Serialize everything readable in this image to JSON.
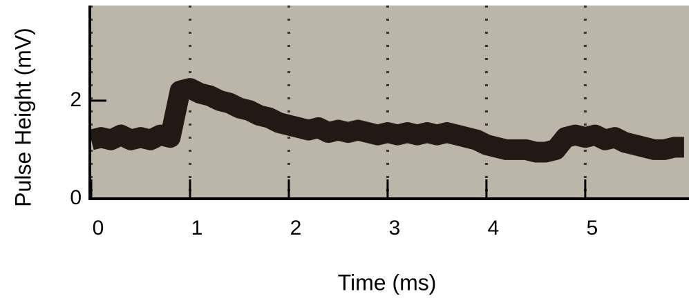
{
  "chart_data": {
    "type": "line",
    "x_label": "Time (ms)",
    "y_label": "Pulse Height (mV)",
    "x": [
      0,
      0.1,
      0.2,
      0.3,
      0.4,
      0.5,
      0.6,
      0.7,
      0.8,
      0.9,
      1.0,
      1.1,
      1.2,
      1.3,
      1.4,
      1.5,
      1.6,
      1.7,
      1.8,
      1.9,
      2.0,
      2.1,
      2.2,
      2.3,
      2.4,
      2.5,
      2.6,
      2.7,
      2.8,
      2.9,
      3.0,
      3.1,
      3.2,
      3.3,
      3.4,
      3.5,
      3.6,
      3.7,
      3.8,
      3.9,
      4.0,
      4.1,
      4.2,
      4.3,
      4.4,
      4.5,
      4.6,
      4.7,
      4.8,
      4.9,
      5.0,
      5.1,
      5.2,
      5.3,
      5.4,
      5.5,
      5.6,
      5.7,
      5.8,
      5.9,
      6.0
    ],
    "values": [
      1.2,
      1.25,
      1.2,
      1.3,
      1.2,
      1.25,
      1.2,
      1.3,
      1.25,
      2.2,
      2.25,
      2.15,
      2.1,
      2.0,
      1.95,
      1.85,
      1.8,
      1.7,
      1.65,
      1.55,
      1.5,
      1.45,
      1.4,
      1.45,
      1.35,
      1.4,
      1.35,
      1.4,
      1.35,
      1.3,
      1.35,
      1.3,
      1.35,
      1.3,
      1.35,
      1.3,
      1.35,
      1.3,
      1.25,
      1.2,
      1.1,
      1.05,
      1.0,
      1.0,
      1.0,
      0.95,
      0.95,
      1.0,
      1.25,
      1.3,
      1.25,
      1.3,
      1.2,
      1.25,
      1.15,
      1.1,
      1.05,
      1.0,
      1.0,
      1.05,
      1.05
    ],
    "color": "#221814",
    "xlim": [
      0,
      6.05
    ],
    "ylim": [
      0,
      3.94
    ],
    "xticks": [
      0,
      1,
      2,
      3,
      4,
      5
    ],
    "yticks": [
      0,
      2
    ],
    "grid": true
  }
}
